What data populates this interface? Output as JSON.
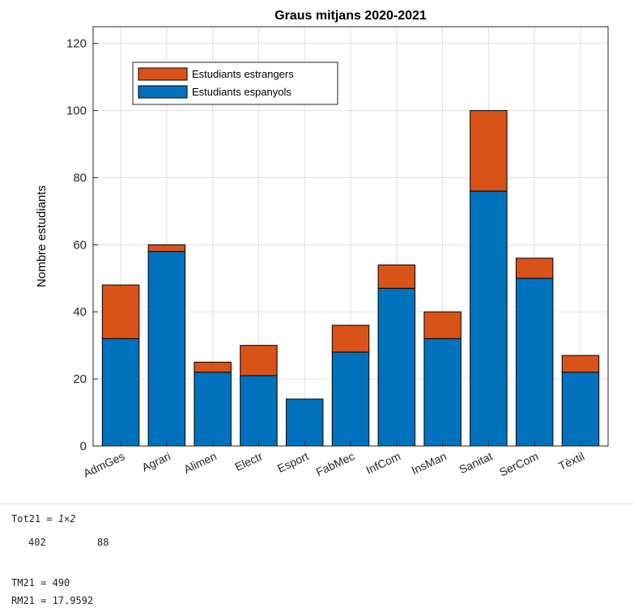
{
  "chart_data": {
    "type": "bar",
    "stacked": true,
    "title": "Graus mitjans 2020-2021",
    "ylabel": "Nombre estudiants",
    "xlabel": "",
    "categories": [
      "AdmGes",
      "Agrari",
      "Alimen",
      "Electr",
      "Esport",
      "FabMec",
      "InfCom",
      "InsMan",
      "Sanitat",
      "SerCom",
      "Tèxtil"
    ],
    "series": [
      {
        "name": "Estudiants espanyols",
        "color": "#0072BD",
        "values": [
          32,
          58,
          22,
          21,
          14,
          28,
          47,
          32,
          76,
          50,
          22
        ]
      },
      {
        "name": "Estudiants estrangers",
        "color": "#D95319",
        "values": [
          16,
          2,
          3,
          9,
          0,
          8,
          7,
          8,
          24,
          6,
          5
        ]
      }
    ],
    "ylim": [
      0,
      125
    ],
    "yticks": [
      0,
      20,
      40,
      60,
      80,
      100,
      120
    ],
    "grid": true,
    "legend_position": "top-left"
  },
  "console": {
    "tot_label": "Tot21 = ",
    "tot_size": "1×2",
    "tot_values": [
      "402",
      "88"
    ],
    "tm_line": "TM21 = 490",
    "rm_line": "RM21 = 17.9592"
  }
}
